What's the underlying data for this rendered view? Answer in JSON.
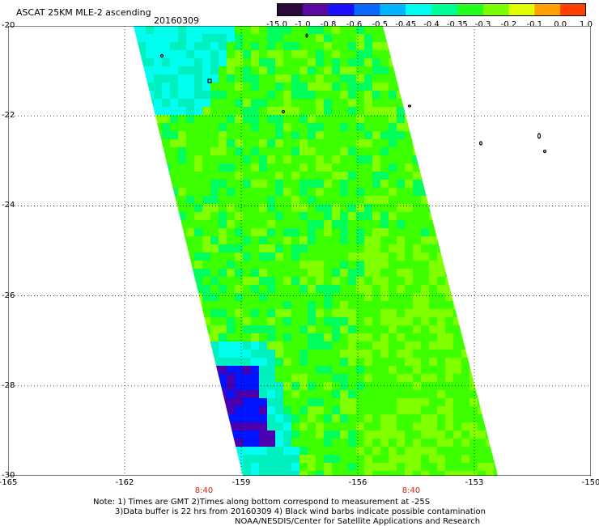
{
  "header": {
    "title": "ASCAT 25KM MLE-2 ascending",
    "date": "20160309"
  },
  "colorbar": {
    "labels": [
      "-15.0",
      "-1.0",
      "-0.8",
      "-0.6",
      "-0.5",
      "-0.45",
      "-0.4",
      "-0.35",
      "-0.3",
      "-0.2",
      "-0.1",
      "0.0",
      "1.0"
    ],
    "colors": [
      "#2a0a3a",
      "#5a0aa0",
      "#1a10ff",
      "#0a6aff",
      "#00b4ff",
      "#00fff0",
      "#00ff96",
      "#20ff20",
      "#7aff00",
      "#e0ff00",
      "#ffa000",
      "#ff4000"
    ]
  },
  "map": {
    "lat_labels": [
      "-20",
      "-22",
      "-24",
      "-26",
      "-28",
      "-30"
    ],
    "lon_labels": [
      "-165",
      "-162",
      "-159",
      "-156",
      "-153",
      "-150"
    ],
    "time_labels": [
      "8:40",
      "8:40"
    ],
    "swath_colors": {
      "cyan": "#00ffee",
      "aqua": "#00f0c0",
      "green": "#00ff5a",
      "lime": "#3cff00",
      "yellowgreen": "#80ff00",
      "blue": "#0014ff",
      "violet": "#4a00b0"
    }
  },
  "notes": {
    "line1": "Note: 1) Times are GMT 2)Times along bottom correspond to measurement at -25S",
    "line2": "3)Data buffer is 22 hrs from 20160309 4) Black wind barbs indicate possible contamination",
    "line3": "NOAA/NESDIS/Center for Satellite Applications and Research"
  }
}
